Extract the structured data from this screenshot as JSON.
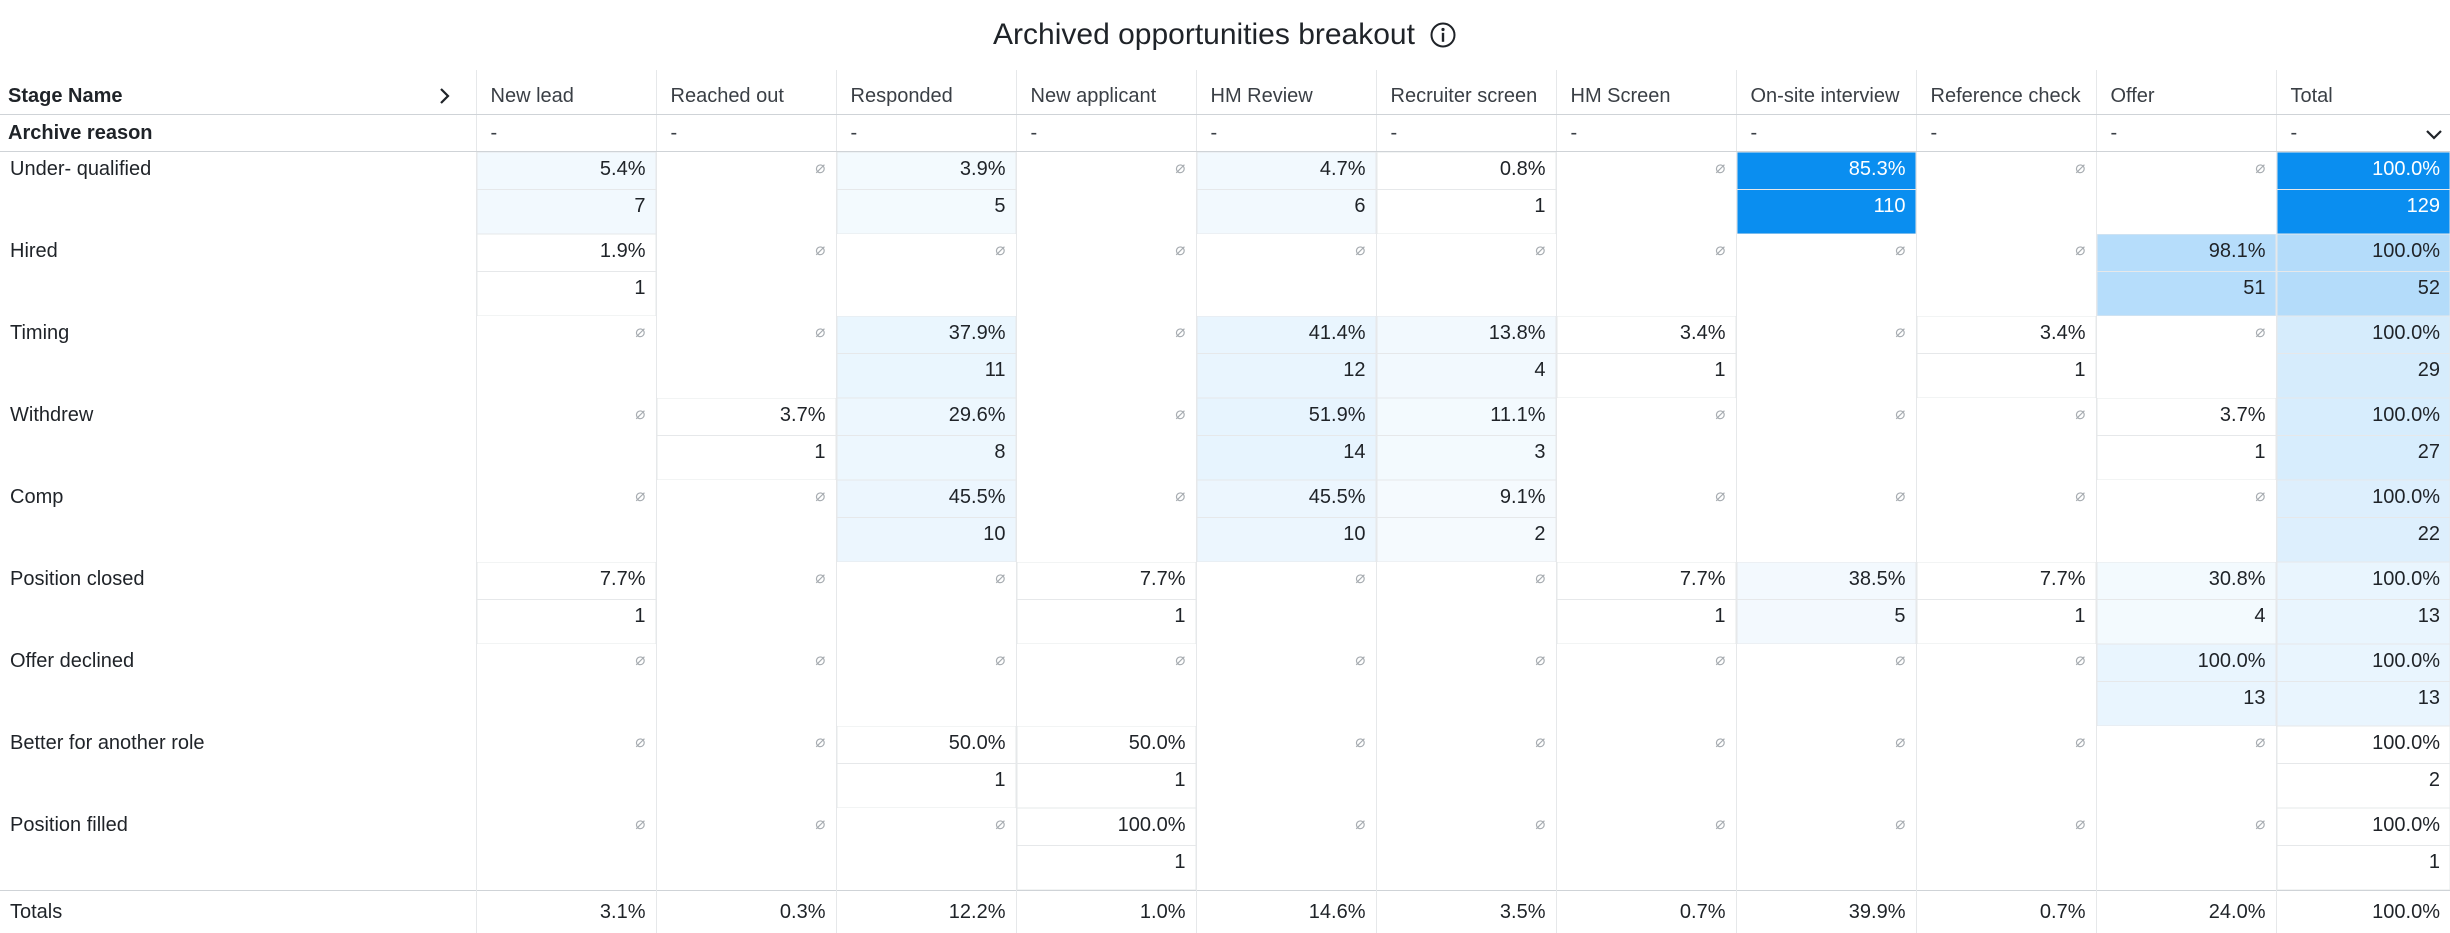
{
  "title": "Archived opportunities breakout",
  "row_dim_label": "Stage Name",
  "col_dim_label": "Archive reason",
  "stages": [
    "New lead",
    "Reached out",
    "Responded",
    "New applicant",
    "HM Review",
    "Recruiter screen",
    "HM Screen",
    "On-site interview",
    "Reference check",
    "Offer",
    "Total"
  ],
  "filter_placeholder": "-",
  "null_symbol": "⌀",
  "rows": [
    {
      "label": "Under- qualified",
      "cells": [
        {
          "pct": "5.4%",
          "count": "7",
          "shade": 0.04
        },
        {
          "pct": null
        },
        {
          "pct": "3.9%",
          "count": "5",
          "shade": 0.03
        },
        {
          "pct": null
        },
        {
          "pct": "4.7%",
          "count": "6",
          "shade": 0.04
        },
        {
          "pct": "0.8%",
          "count": "1",
          "shade": 0
        },
        {
          "pct": null
        },
        {
          "pct": "85.3%",
          "count": "110",
          "shade": 0.85
        },
        {
          "pct": null
        },
        {
          "pct": null
        },
        {
          "pct": "100.0%",
          "count": "129",
          "shade": 1.0
        }
      ]
    },
    {
      "label": "Hired",
      "cells": [
        {
          "pct": "1.9%",
          "count": "1",
          "shade": 0
        },
        {
          "pct": null
        },
        {
          "pct": null
        },
        {
          "pct": null
        },
        {
          "pct": null
        },
        {
          "pct": null
        },
        {
          "pct": null
        },
        {
          "pct": null
        },
        {
          "pct": null
        },
        {
          "pct": "98.1%",
          "count": "51",
          "shade": 0.45
        },
        {
          "pct": "100.0%",
          "count": "52",
          "shade": 0.46
        }
      ]
    },
    {
      "label": "Timing",
      "cells": [
        {
          "pct": null
        },
        {
          "pct": null
        },
        {
          "pct": "37.9%",
          "count": "11",
          "shade": 0.09
        },
        {
          "pct": null
        },
        {
          "pct": "41.4%",
          "count": "12",
          "shade": 0.1
        },
        {
          "pct": "13.8%",
          "count": "4",
          "shade": 0.04
        },
        {
          "pct": "3.4%",
          "count": "1",
          "shade": 0
        },
        {
          "pct": null
        },
        {
          "pct": "3.4%",
          "count": "1",
          "shade": 0
        },
        {
          "pct": null
        },
        {
          "pct": "100.0%",
          "count": "29",
          "shade": 0.23
        }
      ]
    },
    {
      "label": "Withdrew",
      "cells": [
        {
          "pct": null
        },
        {
          "pct": "3.7%",
          "count": "1",
          "shade": 0
        },
        {
          "pct": "29.6%",
          "count": "8",
          "shade": 0.07
        },
        {
          "pct": null
        },
        {
          "pct": "51.9%",
          "count": "14",
          "shade": 0.11
        },
        {
          "pct": "11.1%",
          "count": "3",
          "shade": 0.03
        },
        {
          "pct": null
        },
        {
          "pct": null
        },
        {
          "pct": null
        },
        {
          "pct": "3.7%",
          "count": "1",
          "shade": 0
        },
        {
          "pct": "100.0%",
          "count": "27",
          "shade": 0.22
        }
      ]
    },
    {
      "label": "Comp",
      "cells": [
        {
          "pct": null
        },
        {
          "pct": null
        },
        {
          "pct": "45.5%",
          "count": "10",
          "shade": 0.08
        },
        {
          "pct": null
        },
        {
          "pct": "45.5%",
          "count": "10",
          "shade": 0.08
        },
        {
          "pct": "9.1%",
          "count": "2",
          "shade": 0.02
        },
        {
          "pct": null
        },
        {
          "pct": null
        },
        {
          "pct": null
        },
        {
          "pct": null
        },
        {
          "pct": "100.0%",
          "count": "22",
          "shade": 0.18
        }
      ]
    },
    {
      "label": "Position closed",
      "cells": [
        {
          "pct": "7.7%",
          "count": "1",
          "shade": 0
        },
        {
          "pct": null
        },
        {
          "pct": null
        },
        {
          "pct": "7.7%",
          "count": "1",
          "shade": 0
        },
        {
          "pct": null
        },
        {
          "pct": null
        },
        {
          "pct": "7.7%",
          "count": "1",
          "shade": 0
        },
        {
          "pct": "38.5%",
          "count": "5",
          "shade": 0.035
        },
        {
          "pct": "7.7%",
          "count": "1",
          "shade": 0
        },
        {
          "pct": "30.8%",
          "count": "4",
          "shade": 0.03
        },
        {
          "pct": "100.0%",
          "count": "13",
          "shade": 0.1
        }
      ]
    },
    {
      "label": "Offer declined",
      "cells": [
        {
          "pct": null
        },
        {
          "pct": null
        },
        {
          "pct": null
        },
        {
          "pct": null
        },
        {
          "pct": null
        },
        {
          "pct": null
        },
        {
          "pct": null
        },
        {
          "pct": null
        },
        {
          "pct": null
        },
        {
          "pct": "100.0%",
          "count": "13",
          "shade": 0.1
        },
        {
          "pct": "100.0%",
          "count": "13",
          "shade": 0.1
        }
      ]
    },
    {
      "label": "Better for another role",
      "cells": [
        {
          "pct": null
        },
        {
          "pct": null
        },
        {
          "pct": "50.0%",
          "count": "1",
          "shade": 0
        },
        {
          "pct": "50.0%",
          "count": "1",
          "shade": 0
        },
        {
          "pct": null
        },
        {
          "pct": null
        },
        {
          "pct": null
        },
        {
          "pct": null
        },
        {
          "pct": null
        },
        {
          "pct": null
        },
        {
          "pct": "100.0%",
          "count": "2",
          "shade": 0
        }
      ]
    },
    {
      "label": "Position filled",
      "cells": [
        {
          "pct": null
        },
        {
          "pct": null
        },
        {
          "pct": null
        },
        {
          "pct": "100.0%",
          "count": "1",
          "shade": 0
        },
        {
          "pct": null
        },
        {
          "pct": null
        },
        {
          "pct": null
        },
        {
          "pct": null
        },
        {
          "pct": null
        },
        {
          "pct": null
        },
        {
          "pct": "100.0%",
          "count": "1",
          "shade": 0
        }
      ]
    }
  ],
  "totals": {
    "label": "Totals",
    "values": [
      "3.1%",
      "0.3%",
      "12.2%",
      "1.0%",
      "14.6%",
      "3.5%",
      "0.7%",
      "39.9%",
      "0.7%",
      "24.0%",
      "100.0%"
    ]
  },
  "colors": {
    "accent": "#0a8ef0",
    "light": "#f4f9fe"
  }
}
